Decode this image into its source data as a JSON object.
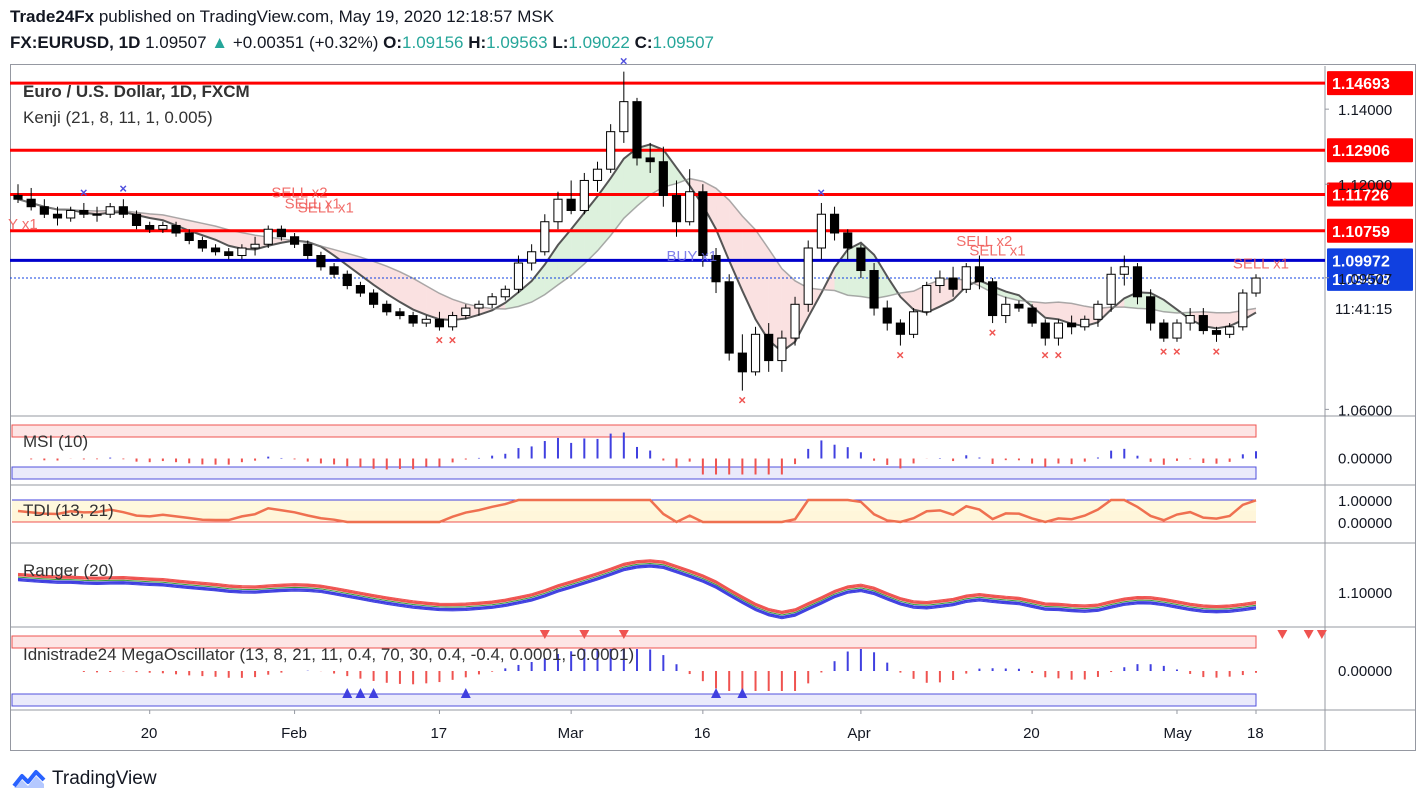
{
  "header": {
    "author": "Trade24Fx",
    "published": "published on TradingView.com, May 19, 2020 12:18:57 MSK",
    "symbol": "FX:EURUSD, 1D",
    "last": "1.09507",
    "change": "+0.00351 (+0.32%)",
    "o_label": "O:",
    "o": "1.09156",
    "h_label": "H:",
    "h": "1.09563",
    "l_label": "L:",
    "l": "1.09022",
    "c_label": "C:",
    "c": "1.09507"
  },
  "brand": {
    "name": "TradingView"
  },
  "colors": {
    "up": "#26a69a",
    "down": "#ef5350",
    "red_line": "#ff0000",
    "blue_line": "#0000cc",
    "text": "#131722"
  },
  "chart_data": [
    {
      "type": "candlestick",
      "title": "Euro / U.S. Dollar, 1D, FXCM",
      "indicator": "Kenji (21, 8, 11, 1, 0.005)",
      "x_ticks": [
        "20",
        "Feb",
        "17",
        "Mar",
        "16",
        "Apr",
        "20",
        "May",
        "18"
      ],
      "y_ticks": [
        "1.14000",
        "1.12000",
        "1.09507",
        "1.06000"
      ],
      "ylim": [
        1.0585,
        1.1515
      ],
      "countdown": "11:41:15",
      "levels": [
        {
          "value": 1.14693,
          "label": "1.14693",
          "kind": "red"
        },
        {
          "value": 1.12906,
          "label": "1.12906",
          "kind": "red"
        },
        {
          "value": 1.11726,
          "label": "1.11726",
          "kind": "red"
        },
        {
          "value": 1.10759,
          "label": "1.10759",
          "kind": "red"
        },
        {
          "value": 1.09972,
          "label": "1.09972",
          "kind": "blue"
        },
        {
          "value": 1.09478,
          "label": "1.09478",
          "kind": "blue-tag"
        }
      ],
      "annotations": [
        "SELL x2",
        "SELL x1",
        "SELL x1",
        "BUY x1",
        "SELL x2",
        "SELL x1",
        "SELL x1",
        "Y x1"
      ],
      "candles": [
        [
          1.117,
          1.12,
          1.115,
          1.116
        ],
        [
          1.116,
          1.119,
          1.113,
          1.114
        ],
        [
          1.114,
          1.116,
          1.111,
          1.112
        ],
        [
          1.112,
          1.114,
          1.109,
          1.111
        ],
        [
          1.111,
          1.114,
          1.11,
          1.113
        ],
        [
          1.113,
          1.115,
          1.111,
          1.112
        ],
        [
          1.112,
          1.114,
          1.11,
          1.112
        ],
        [
          1.112,
          1.115,
          1.111,
          1.114
        ],
        [
          1.114,
          1.116,
          1.111,
          1.112
        ],
        [
          1.112,
          1.113,
          1.108,
          1.109
        ],
        [
          1.109,
          1.11,
          1.107,
          1.108
        ],
        [
          1.108,
          1.11,
          1.107,
          1.109
        ],
        [
          1.109,
          1.11,
          1.106,
          1.107
        ],
        [
          1.107,
          1.108,
          1.104,
          1.105
        ],
        [
          1.105,
          1.106,
          1.102,
          1.103
        ],
        [
          1.103,
          1.104,
          1.101,
          1.102
        ],
        [
          1.102,
          1.103,
          1.1,
          1.101
        ],
        [
          1.101,
          1.104,
          1.1,
          1.103
        ],
        [
          1.103,
          1.106,
          1.101,
          1.104
        ],
        [
          1.104,
          1.109,
          1.103,
          1.108
        ],
        [
          1.108,
          1.109,
          1.105,
          1.106
        ],
        [
          1.106,
          1.107,
          1.103,
          1.104
        ],
        [
          1.104,
          1.105,
          1.1,
          1.101
        ],
        [
          1.101,
          1.102,
          1.097,
          1.098
        ],
        [
          1.098,
          1.099,
          1.095,
          1.096
        ],
        [
          1.096,
          1.097,
          1.092,
          1.093
        ],
        [
          1.093,
          1.094,
          1.09,
          1.091
        ],
        [
          1.091,
          1.092,
          1.087,
          1.088
        ],
        [
          1.088,
          1.089,
          1.085,
          1.086
        ],
        [
          1.086,
          1.087,
          1.084,
          1.085
        ],
        [
          1.085,
          1.086,
          1.082,
          1.083
        ],
        [
          1.083,
          1.085,
          1.082,
          1.084
        ],
        [
          1.084,
          1.086,
          1.081,
          1.082
        ],
        [
          1.082,
          1.086,
          1.081,
          1.085
        ],
        [
          1.085,
          1.088,
          1.084,
          1.087
        ],
        [
          1.087,
          1.089,
          1.085,
          1.088
        ],
        [
          1.088,
          1.091,
          1.087,
          1.09
        ],
        [
          1.09,
          1.093,
          1.089,
          1.092
        ],
        [
          1.092,
          1.101,
          1.091,
          1.099
        ],
        [
          1.099,
          1.104,
          1.097,
          1.102
        ],
        [
          1.102,
          1.112,
          1.101,
          1.11
        ],
        [
          1.11,
          1.118,
          1.108,
          1.116
        ],
        [
          1.116,
          1.121,
          1.112,
          1.113
        ],
        [
          1.113,
          1.123,
          1.112,
          1.121
        ],
        [
          1.121,
          1.126,
          1.118,
          1.124
        ],
        [
          1.124,
          1.136,
          1.123,
          1.134
        ],
        [
          1.134,
          1.15,
          1.131,
          1.142
        ],
        [
          1.142,
          1.143,
          1.125,
          1.127
        ],
        [
          1.127,
          1.131,
          1.123,
          1.126
        ],
        [
          1.126,
          1.13,
          1.114,
          1.117
        ],
        [
          1.117,
          1.121,
          1.106,
          1.11
        ],
        [
          1.11,
          1.124,
          1.109,
          1.118
        ],
        [
          1.118,
          1.12,
          1.098,
          1.101
        ],
        [
          1.101,
          1.103,
          1.091,
          1.094
        ],
        [
          1.094,
          1.096,
          1.073,
          1.075
        ],
        [
          1.075,
          1.08,
          1.065,
          1.07
        ],
        [
          1.07,
          1.082,
          1.069,
          1.08
        ],
        [
          1.08,
          1.083,
          1.07,
          1.073
        ],
        [
          1.073,
          1.081,
          1.07,
          1.079
        ],
        [
          1.079,
          1.09,
          1.077,
          1.088
        ],
        [
          1.088,
          1.105,
          1.086,
          1.103
        ],
        [
          1.103,
          1.115,
          1.1,
          1.112
        ],
        [
          1.112,
          1.114,
          1.105,
          1.107
        ],
        [
          1.107,
          1.108,
          1.1,
          1.103
        ],
        [
          1.103,
          1.104,
          1.095,
          1.097
        ],
        [
          1.097,
          1.099,
          1.085,
          1.087
        ],
        [
          1.087,
          1.089,
          1.081,
          1.083
        ],
        [
          1.083,
          1.084,
          1.077,
          1.08
        ],
        [
          1.08,
          1.087,
          1.079,
          1.086
        ],
        [
          1.086,
          1.094,
          1.085,
          1.093
        ],
        [
          1.093,
          1.097,
          1.091,
          1.095
        ],
        [
          1.095,
          1.098,
          1.09,
          1.092
        ],
        [
          1.092,
          1.099,
          1.091,
          1.098
        ],
        [
          1.098,
          1.101,
          1.092,
          1.094
        ],
        [
          1.094,
          1.095,
          1.083,
          1.085
        ],
        [
          1.085,
          1.09,
          1.083,
          1.088
        ],
        [
          1.088,
          1.089,
          1.086,
          1.087
        ],
        [
          1.087,
          1.088,
          1.082,
          1.083
        ],
        [
          1.083,
          1.084,
          1.077,
          1.079
        ],
        [
          1.079,
          1.084,
          1.077,
          1.083
        ],
        [
          1.083,
          1.085,
          1.08,
          1.082
        ],
        [
          1.082,
          1.085,
          1.081,
          1.084
        ],
        [
          1.084,
          1.089,
          1.082,
          1.088
        ],
        [
          1.088,
          1.098,
          1.086,
          1.096
        ],
        [
          1.096,
          1.101,
          1.093,
          1.098
        ],
        [
          1.098,
          1.099,
          1.088,
          1.09
        ],
        [
          1.09,
          1.092,
          1.081,
          1.083
        ],
        [
          1.083,
          1.084,
          1.078,
          1.079
        ],
        [
          1.079,
          1.084,
          1.078,
          1.083
        ],
        [
          1.083,
          1.087,
          1.081,
          1.085
        ],
        [
          1.085,
          1.087,
          1.08,
          1.081
        ],
        [
          1.081,
          1.082,
          1.078,
          1.08
        ],
        [
          1.08,
          1.083,
          1.079,
          1.082
        ],
        [
          1.082,
          1.092,
          1.081,
          1.091
        ],
        [
          1.091,
          1.096,
          1.09,
          1.095
        ]
      ]
    },
    {
      "type": "bar",
      "title": "MSI (10)",
      "y_ticks": [
        "0.00000"
      ]
    },
    {
      "type": "line",
      "title": "TDI (13, 21)",
      "y_ticks": [
        "1.00000",
        "0.00000"
      ]
    },
    {
      "type": "line",
      "title": "Ranger (20)",
      "y_ticks": [
        "1.10000"
      ]
    },
    {
      "type": "bar",
      "title": "Idnistrade24 MegaOscillator (13, 8, 21, 11, 0.4, 70, 30, 0.4, -0.4, 0.0001, -0.0001)",
      "y_ticks": [
        "0.00000"
      ]
    }
  ]
}
